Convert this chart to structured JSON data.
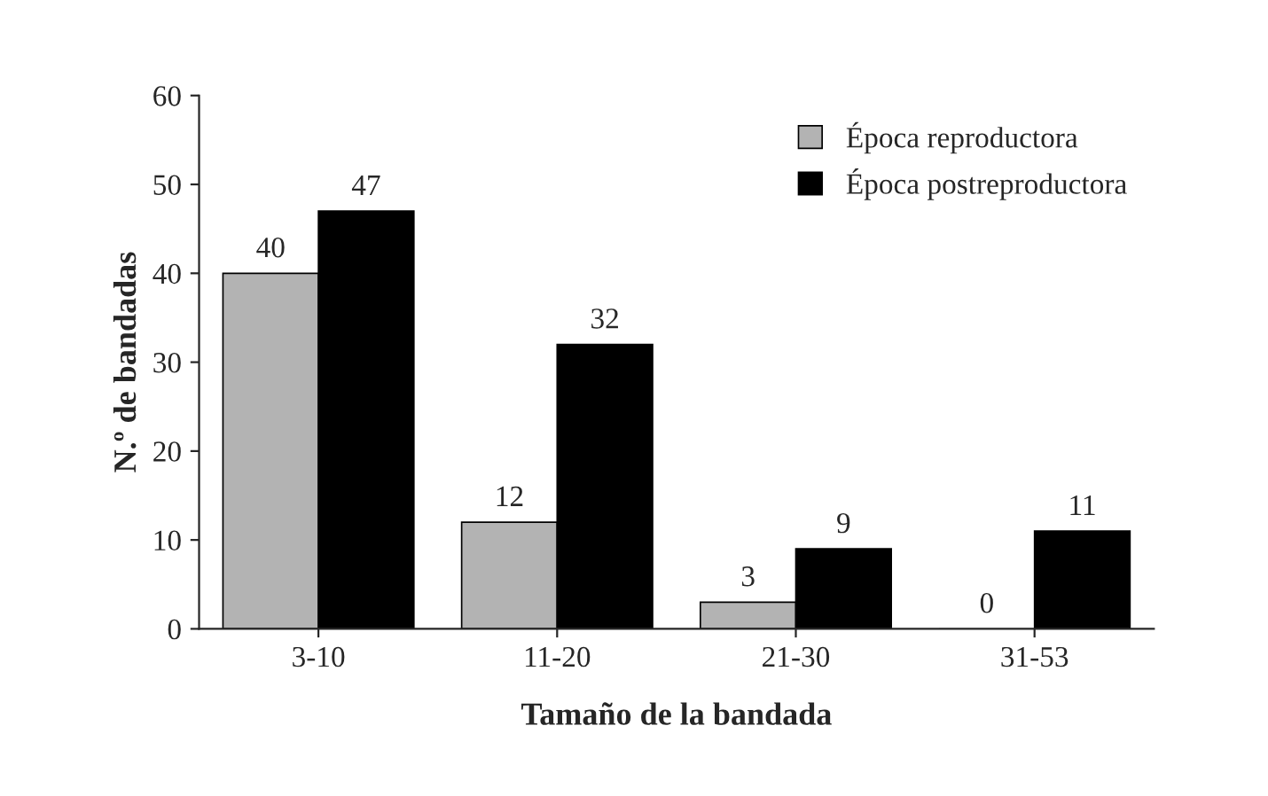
{
  "chart_data": {
    "type": "bar",
    "xlabel": "Tamaño de la bandada",
    "ylabel": "N.º de bandadas",
    "categories": [
      "3-10",
      "11-20",
      "21-30",
      "31-53"
    ],
    "series": [
      {
        "name": "Época reproductora",
        "color": "#b3b3b3",
        "values": [
          40,
          12,
          3,
          0
        ]
      },
      {
        "name": "Época postreproductora",
        "color": "#000000",
        "values": [
          47,
          32,
          9,
          11
        ]
      }
    ],
    "ylim": [
      0,
      60
    ],
    "yticks": [
      0,
      10,
      20,
      30,
      40,
      50,
      60
    ],
    "data_labels": true,
    "legend": "top right",
    "grid": false
  }
}
